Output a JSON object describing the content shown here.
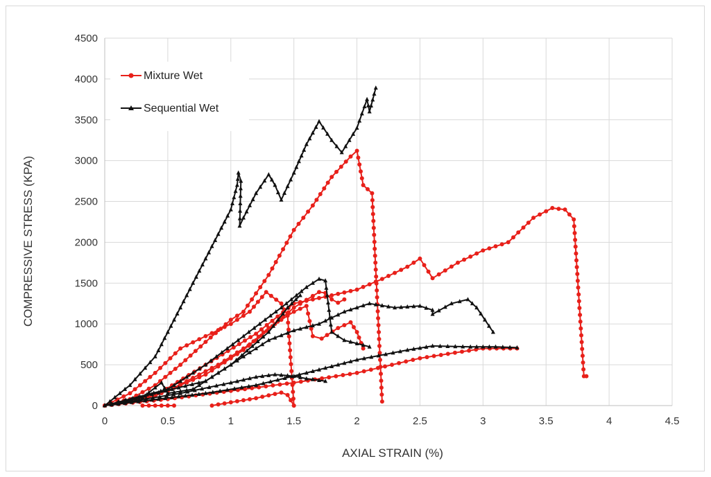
{
  "chart_data": {
    "type": "line",
    "title": "",
    "xlabel": "AXIAL STRAIN (%)",
    "ylabel": "COMPRESSIVE STRESS (KPA)",
    "xlim": [
      0,
      4.5
    ],
    "ylim": [
      0,
      4500
    ],
    "xticks": [
      "0",
      "0.5",
      "1",
      "1.5",
      "2",
      "2.5",
      "3",
      "3.5",
      "4",
      "4.5"
    ],
    "yticks": [
      "0",
      "500",
      "1000",
      "1500",
      "2000",
      "2500",
      "3000",
      "3500",
      "4000",
      "4500"
    ],
    "grid": true,
    "legend_position": "top-left",
    "legend": [
      {
        "label": "Mixture Wet",
        "color": "#e8201a",
        "marker": "circle"
      },
      {
        "label": "Sequential Wet",
        "color": "#111111",
        "marker": "triangle"
      }
    ],
    "series": [
      {
        "group": "mixture",
        "color": "#e8201a",
        "marker": "circle",
        "points": [
          [
            0,
            0
          ],
          [
            0.2,
            80
          ],
          [
            0.4,
            250
          ],
          [
            0.6,
            500
          ],
          [
            0.8,
            780
          ],
          [
            1.0,
            1050
          ],
          [
            1.1,
            1150
          ],
          [
            1.3,
            1600
          ],
          [
            1.5,
            2150
          ],
          [
            1.65,
            2450
          ],
          [
            1.8,
            2800
          ],
          [
            1.95,
            3050
          ],
          [
            2.0,
            3120
          ],
          [
            2.05,
            2700
          ],
          [
            2.12,
            2600
          ],
          [
            2.2,
            50
          ]
        ]
      },
      {
        "group": "mixture",
        "color": "#e8201a",
        "marker": "circle",
        "points": [
          [
            0,
            0
          ],
          [
            0.4,
            120
          ],
          [
            0.8,
            500
          ],
          [
            1.2,
            880
          ],
          [
            1.5,
            1250
          ],
          [
            1.8,
            1350
          ],
          [
            2.0,
            1420
          ],
          [
            2.2,
            1550
          ],
          [
            2.4,
            1700
          ],
          [
            2.5,
            1800
          ],
          [
            2.6,
            1560
          ],
          [
            2.8,
            1750
          ],
          [
            3.0,
            1900
          ],
          [
            3.2,
            2000
          ],
          [
            3.4,
            2300
          ],
          [
            3.55,
            2420
          ],
          [
            3.65,
            2400
          ],
          [
            3.72,
            2280
          ],
          [
            3.8,
            360
          ],
          [
            3.82,
            360
          ]
        ]
      },
      {
        "group": "mixture",
        "color": "#e8201a",
        "marker": "circle",
        "points": [
          [
            0,
            0
          ],
          [
            0.2,
            150
          ],
          [
            0.4,
            400
          ],
          [
            0.6,
            700
          ],
          [
            0.8,
            850
          ],
          [
            1.0,
            1000
          ],
          [
            1.15,
            1150
          ],
          [
            1.28,
            1390
          ],
          [
            1.4,
            1250
          ],
          [
            1.45,
            1100
          ],
          [
            1.5,
            0
          ]
        ]
      },
      {
        "group": "mixture",
        "color": "#e8201a",
        "marker": "circle",
        "points": [
          [
            0,
            0
          ],
          [
            0.5,
            180
          ],
          [
            0.9,
            500
          ],
          [
            1.2,
            800
          ],
          [
            1.5,
            1200
          ],
          [
            1.7,
            1390
          ],
          [
            1.75,
            1380
          ],
          [
            1.8,
            1300
          ],
          [
            1.85,
            1260
          ],
          [
            1.9,
            1300
          ]
        ]
      },
      {
        "group": "mixture",
        "color": "#e8201a",
        "marker": "circle",
        "points": [
          [
            0,
            0
          ],
          [
            0.4,
            120
          ],
          [
            0.8,
            380
          ],
          [
            1.1,
            680
          ],
          [
            1.3,
            950
          ],
          [
            1.5,
            1150
          ],
          [
            1.6,
            1220
          ],
          [
            1.65,
            850
          ],
          [
            1.72,
            820
          ],
          [
            1.85,
            950
          ],
          [
            1.95,
            1020
          ],
          [
            2.0,
            900
          ],
          [
            2.05,
            700
          ]
        ]
      },
      {
        "group": "mixture",
        "color": "#e8201a",
        "marker": "circle",
        "points": [
          [
            0,
            0
          ],
          [
            0.5,
            80
          ],
          [
            1.0,
            180
          ],
          [
            1.5,
            280
          ],
          [
            2.0,
            400
          ],
          [
            2.5,
            580
          ],
          [
            3.0,
            700
          ],
          [
            3.27,
            700
          ]
        ]
      },
      {
        "group": "mixture",
        "color": "#e8201a",
        "marker": "circle",
        "points": [
          [
            0.3,
            0
          ],
          [
            0.4,
            0
          ],
          [
            0.55,
            0
          ]
        ]
      },
      {
        "group": "mixture",
        "color": "#e8201a",
        "marker": "circle",
        "points": [
          [
            0.85,
            0
          ],
          [
            1.0,
            40
          ],
          [
            1.2,
            90
          ],
          [
            1.4,
            160
          ],
          [
            1.45,
            130
          ],
          [
            1.5,
            0
          ]
        ]
      },
      {
        "group": "sequential",
        "color": "#111111",
        "marker": "triangle",
        "points": [
          [
            0,
            0
          ],
          [
            0.2,
            250
          ],
          [
            0.4,
            600
          ],
          [
            0.6,
            1200
          ],
          [
            0.8,
            1800
          ],
          [
            1.0,
            2400
          ],
          [
            1.05,
            2700
          ],
          [
            1.06,
            2850
          ],
          [
            1.08,
            2750
          ],
          [
            1.07,
            2200
          ],
          [
            1.1,
            2300
          ],
          [
            1.2,
            2600
          ],
          [
            1.3,
            2830
          ],
          [
            1.35,
            2700
          ],
          [
            1.4,
            2520
          ],
          [
            1.5,
            2850
          ],
          [
            1.6,
            3200
          ],
          [
            1.7,
            3480
          ],
          [
            1.8,
            3250
          ],
          [
            1.88,
            3100
          ],
          [
            2.0,
            3400
          ],
          [
            2.08,
            3750
          ],
          [
            2.1,
            3600
          ],
          [
            2.15,
            3890
          ]
        ]
      },
      {
        "group": "sequential",
        "color": "#111111",
        "marker": "triangle",
        "points": [
          [
            0,
            0
          ],
          [
            0.5,
            200
          ],
          [
            0.8,
            500
          ],
          [
            1.1,
            850
          ],
          [
            1.4,
            1200
          ],
          [
            1.6,
            1450
          ],
          [
            1.7,
            1550
          ],
          [
            1.75,
            1530
          ],
          [
            1.8,
            900
          ],
          [
            1.9,
            800
          ],
          [
            2.0,
            760
          ],
          [
            2.1,
            720
          ]
        ]
      },
      {
        "group": "sequential",
        "color": "#111111",
        "marker": "triangle",
        "points": [
          [
            0,
            0
          ],
          [
            0.8,
            300
          ],
          [
            1.1,
            600
          ],
          [
            1.3,
            800
          ],
          [
            1.5,
            920
          ],
          [
            1.7,
            1000
          ],
          [
            1.9,
            1150
          ],
          [
            2.1,
            1250
          ],
          [
            2.3,
            1200
          ],
          [
            2.5,
            1220
          ],
          [
            2.6,
            1170
          ],
          [
            2.6,
            1120
          ],
          [
            2.75,
            1250
          ],
          [
            2.88,
            1300
          ],
          [
            2.95,
            1200
          ],
          [
            3.08,
            900
          ]
        ]
      },
      {
        "group": "sequential",
        "color": "#111111",
        "marker": "triangle",
        "points": [
          [
            0,
            0
          ],
          [
            0.8,
            150
          ],
          [
            1.2,
            250
          ],
          [
            1.6,
            400
          ],
          [
            2.0,
            560
          ],
          [
            2.4,
            680
          ],
          [
            2.6,
            730
          ],
          [
            2.9,
            720
          ],
          [
            3.1,
            720
          ],
          [
            3.27,
            710
          ]
        ]
      },
      {
        "group": "sequential",
        "color": "#111111",
        "marker": "triangle",
        "points": [
          [
            0,
            0
          ],
          [
            0.6,
            150
          ],
          [
            1.0,
            280
          ],
          [
            1.2,
            350
          ],
          [
            1.35,
            380
          ],
          [
            1.5,
            360
          ],
          [
            1.6,
            330
          ],
          [
            1.75,
            300
          ]
        ]
      },
      {
        "group": "sequential",
        "color": "#111111",
        "marker": "triangle",
        "points": [
          [
            0,
            0
          ],
          [
            0.3,
            100
          ],
          [
            0.45,
            280
          ],
          [
            0.5,
            150
          ],
          [
            0.7,
            200
          ],
          [
            1.0,
            500
          ],
          [
            1.3,
            900
          ],
          [
            1.45,
            1200
          ],
          [
            1.55,
            1350
          ]
        ]
      }
    ]
  }
}
